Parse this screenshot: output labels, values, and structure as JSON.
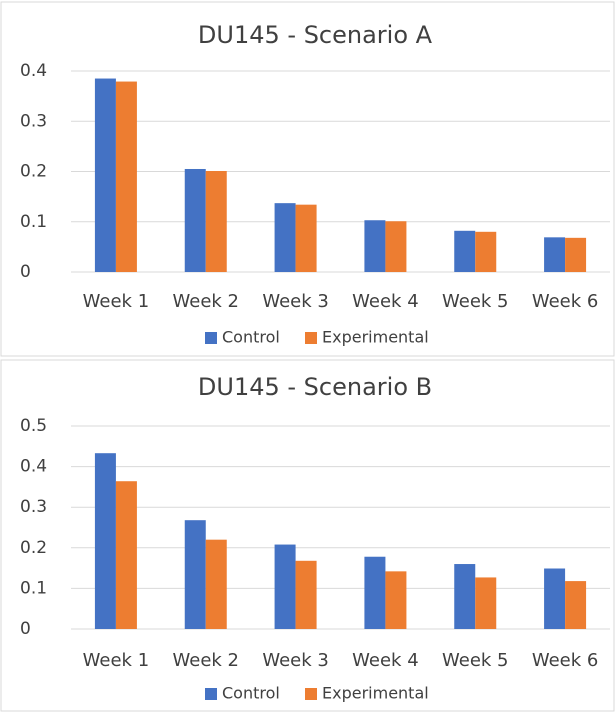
{
  "chart_data": [
    {
      "type": "bar",
      "title": "DU145 - Scenario A",
      "categories": [
        "Week 1",
        "Week 2",
        "Week 3",
        "Week 4",
        "Week 5",
        "Week 6"
      ],
      "series": [
        {
          "name": "Control",
          "color": "#4472c4",
          "values": [
            0.385,
            0.205,
            0.137,
            0.103,
            0.082,
            0.069
          ]
        },
        {
          "name": "Experimental",
          "color": "#ed7d31",
          "values": [
            0.379,
            0.201,
            0.134,
            0.101,
            0.08,
            0.068
          ]
        }
      ],
      "ylim": [
        0,
        0.4
      ],
      "yticks": [
        0,
        0.1,
        0.2,
        0.3,
        0.4
      ],
      "grid": true,
      "legend": "bottom"
    },
    {
      "type": "bar",
      "title": "DU145 - Scenario B",
      "categories": [
        "Week 1",
        "Week 2",
        "Week 3",
        "Week 4",
        "Week 5",
        "Week 6"
      ],
      "series": [
        {
          "name": "Control",
          "color": "#4472c4",
          "values": [
            0.433,
            0.268,
            0.208,
            0.178,
            0.16,
            0.149
          ]
        },
        {
          "name": "Experimental",
          "color": "#ed7d31",
          "values": [
            0.364,
            0.22,
            0.168,
            0.142,
            0.127,
            0.118
          ]
        }
      ],
      "ylim": [
        0,
        0.5
      ],
      "yticks": [
        0,
        0.1,
        0.2,
        0.3,
        0.4,
        0.5
      ],
      "grid": true,
      "legend": "bottom"
    }
  ]
}
